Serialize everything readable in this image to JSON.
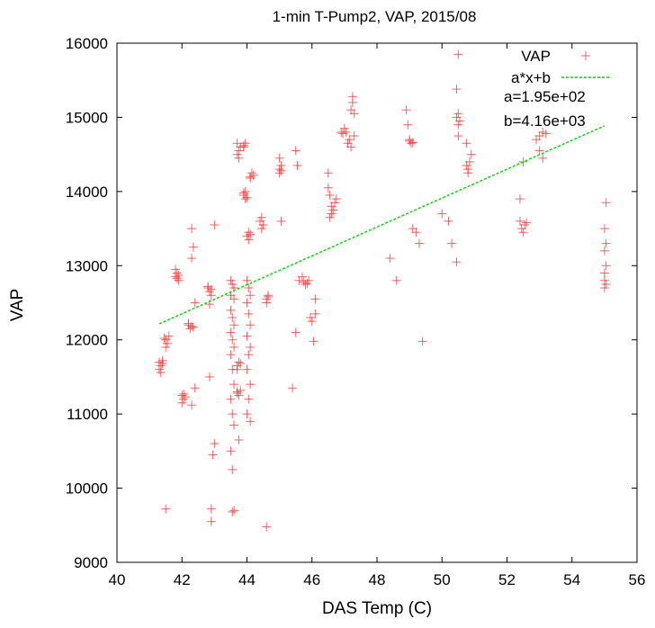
{
  "chart_data": {
    "type": "scatter",
    "title": "1-min T-Pump2, VAP, 2015/08",
    "xlabel": "DAS Temp (C)",
    "ylabel": "VAP",
    "xlim": [
      40,
      56
    ],
    "ylim": [
      9000,
      16000
    ],
    "xticks": [
      "40",
      "42",
      "44",
      "46",
      "48",
      "50",
      "52",
      "54",
      "56"
    ],
    "yticks": [
      "9000",
      "10000",
      "11000",
      "12000",
      "13000",
      "14000",
      "15000",
      "16000"
    ],
    "grid": false,
    "legend_position": "top-right",
    "series": [
      {
        "name": "VAP",
        "color": "#ff3030",
        "marker": "plus",
        "points": [
          [
            41.3,
            11700
          ],
          [
            41.35,
            11650
          ],
          [
            41.4,
            11720
          ],
          [
            41.3,
            11600
          ],
          [
            41.4,
            11680
          ],
          [
            41.35,
            11560
          ],
          [
            41.5,
            12000
          ],
          [
            41.55,
            11950
          ],
          [
            41.5,
            11900
          ],
          [
            41.6,
            12050
          ],
          [
            41.45,
            12020
          ],
          [
            41.5,
            9720
          ],
          [
            41.8,
            12850
          ],
          [
            41.85,
            12900
          ],
          [
            41.9,
            12800
          ],
          [
            41.8,
            12950
          ],
          [
            41.9,
            12870
          ],
          [
            41.85,
            12830
          ],
          [
            42.0,
            11250
          ],
          [
            42.05,
            11200
          ],
          [
            42.0,
            11150
          ],
          [
            42.1,
            11230
          ],
          [
            42.05,
            11270
          ],
          [
            42.2,
            12200
          ],
          [
            42.25,
            12150
          ],
          [
            42.3,
            12180
          ],
          [
            42.35,
            12170
          ],
          [
            42.2,
            12220
          ],
          [
            42.3,
            13100
          ],
          [
            42.35,
            13250
          ],
          [
            42.3,
            13500
          ],
          [
            42.4,
            12500
          ],
          [
            42.4,
            11350
          ],
          [
            42.3,
            11120
          ],
          [
            42.8,
            12700
          ],
          [
            42.85,
            12650
          ],
          [
            42.9,
            12680
          ],
          [
            42.8,
            12720
          ],
          [
            42.9,
            12600
          ],
          [
            42.85,
            12480
          ],
          [
            43.0,
            13550
          ],
          [
            43.0,
            10600
          ],
          [
            42.95,
            10450
          ],
          [
            42.9,
            9720
          ],
          [
            42.9,
            9550
          ],
          [
            42.85,
            11500
          ],
          [
            43.5,
            12800
          ],
          [
            43.55,
            12750
          ],
          [
            43.6,
            12700
          ],
          [
            43.5,
            12600
          ],
          [
            43.6,
            12550
          ],
          [
            43.5,
            12400
          ],
          [
            43.55,
            12300
          ],
          [
            43.6,
            12200
          ],
          [
            43.5,
            12100
          ],
          [
            43.55,
            12000
          ],
          [
            43.6,
            11900
          ],
          [
            43.5,
            11800
          ],
          [
            43.55,
            11600
          ],
          [
            43.6,
            11400
          ],
          [
            43.5,
            11200
          ],
          [
            43.55,
            11000
          ],
          [
            43.6,
            10850
          ],
          [
            43.5,
            10500
          ],
          [
            43.55,
            10250
          ],
          [
            43.6,
            9700
          ],
          [
            43.55,
            9680
          ],
          [
            43.7,
            11650
          ],
          [
            43.75,
            11700
          ],
          [
            43.7,
            11600
          ],
          [
            43.8,
            11680
          ],
          [
            43.7,
            11300
          ],
          [
            43.75,
            11250
          ],
          [
            43.8,
            11320
          ],
          [
            43.7,
            11280
          ],
          [
            43.75,
            10650
          ],
          [
            43.7,
            14500
          ],
          [
            43.75,
            14550
          ],
          [
            43.8,
            14600
          ],
          [
            43.7,
            14650
          ],
          [
            43.75,
            14450
          ],
          [
            43.9,
            14600
          ],
          [
            43.95,
            14650
          ],
          [
            43.9,
            14620
          ],
          [
            43.9,
            13950
          ],
          [
            43.95,
            13900
          ],
          [
            44.0,
            13920
          ],
          [
            43.9,
            13980
          ],
          [
            43.95,
            14000
          ],
          [
            44.0,
            13400
          ],
          [
            44.05,
            13450
          ],
          [
            44.1,
            13420
          ],
          [
            44.05,
            13350
          ],
          [
            44.1,
            14200
          ],
          [
            44.15,
            14250
          ],
          [
            44.2,
            14220
          ],
          [
            44.1,
            14180
          ],
          [
            44.0,
            12800
          ],
          [
            44.05,
            12700
          ],
          [
            44.1,
            12600
          ],
          [
            44.0,
            12500
          ],
          [
            44.05,
            12350
          ],
          [
            44.1,
            12200
          ],
          [
            44.0,
            12050
          ],
          [
            44.1,
            11900
          ],
          [
            44.05,
            11800
          ],
          [
            44.0,
            11600
          ],
          [
            44.1,
            11400
          ],
          [
            44.05,
            11200
          ],
          [
            44.0,
            11000
          ],
          [
            44.1,
            10900
          ],
          [
            44.4,
            13600
          ],
          [
            44.45,
            13650
          ],
          [
            44.5,
            13550
          ],
          [
            44.45,
            13500
          ],
          [
            44.6,
            12550
          ],
          [
            44.65,
            12600
          ],
          [
            44.6,
            12500
          ],
          [
            44.65,
            12580
          ],
          [
            44.6,
            9480
          ],
          [
            45.0,
            14300
          ],
          [
            45.05,
            14350
          ],
          [
            45.0,
            14250
          ],
          [
            45.05,
            14280
          ],
          [
            45.0,
            14450
          ],
          [
            45.05,
            13600
          ],
          [
            45.4,
            11350
          ],
          [
            45.5,
            14550
          ],
          [
            45.55,
            14350
          ],
          [
            45.6,
            12800
          ],
          [
            45.7,
            12850
          ],
          [
            45.8,
            12750
          ],
          [
            45.9,
            12800
          ],
          [
            45.75,
            12780
          ],
          [
            45.85,
            12760
          ],
          [
            45.5,
            12100
          ],
          [
            45.95,
            12300
          ],
          [
            46.0,
            12250
          ],
          [
            46.1,
            12350
          ],
          [
            46.05,
            11980
          ],
          [
            46.1,
            12550
          ],
          [
            46.5,
            14250
          ],
          [
            46.5,
            14050
          ],
          [
            46.55,
            13950
          ],
          [
            46.6,
            13800
          ],
          [
            46.65,
            13750
          ],
          [
            46.7,
            13850
          ],
          [
            46.75,
            13900
          ],
          [
            46.6,
            13700
          ],
          [
            46.55,
            13650
          ],
          [
            46.9,
            14800
          ],
          [
            47.0,
            14850
          ],
          [
            47.05,
            14800
          ],
          [
            46.95,
            14780
          ],
          [
            47.1,
            14650
          ],
          [
            47.2,
            14600
          ],
          [
            47.15,
            14700
          ],
          [
            47.2,
            15100
          ],
          [
            47.25,
            15200
          ],
          [
            47.3,
            15050
          ],
          [
            47.25,
            15280
          ],
          [
            47.3,
            14750
          ],
          [
            48.4,
            13100
          ],
          [
            48.6,
            12800
          ],
          [
            48.9,
            15100
          ],
          [
            49.0,
            14700
          ],
          [
            49.05,
            14650
          ],
          [
            49.0,
            14680
          ],
          [
            49.1,
            14660
          ],
          [
            48.95,
            14900
          ],
          [
            49.1,
            13500
          ],
          [
            49.2,
            13450
          ],
          [
            49.3,
            13300
          ],
          [
            49.4,
            11980
          ],
          [
            50.0,
            13700
          ],
          [
            50.2,
            13600
          ],
          [
            50.3,
            13300
          ],
          [
            50.45,
            15000
          ],
          [
            50.5,
            15050
          ],
          [
            50.55,
            14950
          ],
          [
            50.5,
            14900
          ],
          [
            50.45,
            15380
          ],
          [
            50.5,
            15850
          ],
          [
            50.5,
            14750
          ],
          [
            50.45,
            13050
          ],
          [
            50.75,
            14350
          ],
          [
            50.8,
            14300
          ],
          [
            50.85,
            14400
          ],
          [
            50.8,
            14250
          ],
          [
            50.9,
            14500
          ],
          [
            50.75,
            14650
          ],
          [
            52.4,
            13600
          ],
          [
            52.45,
            13500
          ],
          [
            52.5,
            13450
          ],
          [
            52.55,
            13550
          ],
          [
            52.6,
            13580
          ],
          [
            52.4,
            13900
          ],
          [
            52.5,
            14400
          ],
          [
            52.9,
            14700
          ],
          [
            53.0,
            14750
          ],
          [
            53.1,
            14800
          ],
          [
            53.2,
            14780
          ],
          [
            53.0,
            14550
          ],
          [
            53.1,
            14450
          ],
          [
            55.0,
            12800
          ],
          [
            55.05,
            12750
          ],
          [
            55.0,
            12900
          ],
          [
            55.05,
            13000
          ],
          [
            55.0,
            13200
          ],
          [
            55.05,
            13300
          ],
          [
            55.0,
            13500
          ],
          [
            55.05,
            13850
          ],
          [
            55.0,
            12700
          ]
        ]
      },
      {
        "name": "a*x+b",
        "color": "#00dd00",
        "type": "line",
        "x": [
          41.3,
          55.0
        ],
        "y": [
          12215.5,
          14886
        ]
      }
    ],
    "annotations": [
      "a=1.95e+02",
      "b=4.16e+03"
    ]
  }
}
